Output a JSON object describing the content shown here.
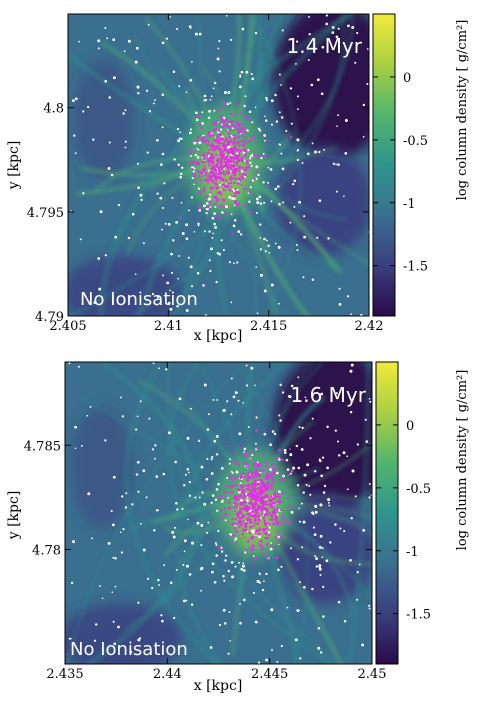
{
  "colors": {
    "colormap": [
      "#2a0a4a",
      "#3b3f7f",
      "#3a6f8f",
      "#2f958c",
      "#52b56d",
      "#a8d043",
      "#f2ea3a"
    ],
    "star_white": "#ffffff",
    "star_magenta": "#e22ee8",
    "frame": "#000000"
  },
  "chart_data": [
    {
      "type": "heatmap",
      "title": "",
      "annotation_time": "1.4 Myr",
      "annotation_label": "No Ionisation",
      "xlabel": "x [kpc]",
      "ylabel": "y [kpc]",
      "colorbar_label": "log column density [ g/cm²]",
      "xlim": [
        2.405,
        2.42
      ],
      "ylim": [
        4.79,
        4.8045
      ],
      "x_ticks": [
        2.405,
        2.41,
        2.415,
        2.42
      ],
      "x_tick_labels": [
        "2.405",
        "2.41",
        "2.415",
        "2.42"
      ],
      "y_ticks": [
        4.79,
        4.795,
        4.8
      ],
      "y_tick_labels": [
        "4.79",
        "4.795",
        "4.8"
      ],
      "colorbar_range": [
        -1.9,
        0.5
      ],
      "colorbar_ticks": [
        0,
        -0.5,
        -1,
        -1.5
      ],
      "colorbar_tick_labels": [
        "0",
        "-0.5",
        "-1",
        "-1.5"
      ],
      "cluster_center": [
        2.4128,
        4.7975
      ]
    },
    {
      "type": "heatmap",
      "title": "",
      "annotation_time": "1.6 Myr",
      "annotation_label": "No Ionisation",
      "xlabel": "x [kpc]",
      "ylabel": "y [kpc]",
      "colorbar_label": "log column density [ g/cm²]",
      "xlim": [
        2.435,
        2.45
      ],
      "ylim": [
        4.7745,
        4.789
      ],
      "x_ticks": [
        2.435,
        2.44,
        2.445,
        2.45
      ],
      "x_tick_labels": [
        "2.435",
        "2.44",
        "2.445",
        "2.45"
      ],
      "y_ticks": [
        4.78,
        4.785
      ],
      "y_tick_labels": [
        "4.78",
        "4.785"
      ],
      "colorbar_range": [
        -1.9,
        0.5
      ],
      "colorbar_ticks": [
        0,
        -0.5,
        -1,
        -1.5
      ],
      "colorbar_tick_labels": [
        "0",
        "-0.5",
        "-1",
        "-1.5"
      ],
      "cluster_center": [
        2.4443,
        4.7822
      ]
    }
  ]
}
